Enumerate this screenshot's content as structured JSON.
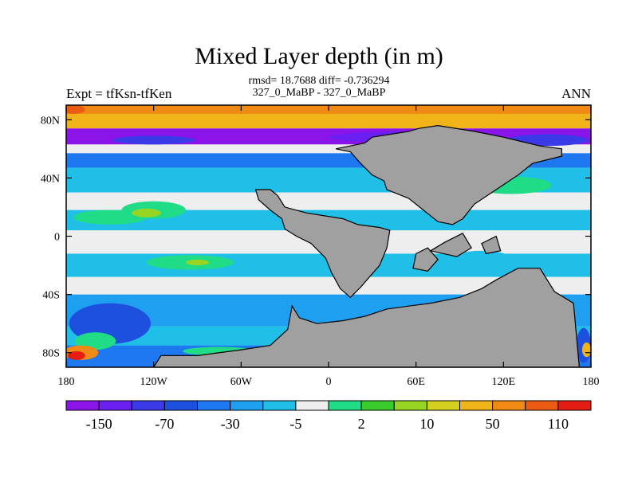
{
  "header": {
    "title": "Mixed Layer depth (in m)",
    "stats": "rmsd= 18.7688 diff= -0.736294",
    "subtitle": "327_0_MaBP - 327_0_MaBP",
    "left_label": "Expt = tfKsn-tfKen",
    "right_label": "ANN"
  },
  "chart_data": {
    "type": "heatmap",
    "title": "Mixed Layer depth (in m)",
    "map_projection": "cylindrical-equidistant",
    "x_range": [
      -180,
      180
    ],
    "y_range": [
      -90,
      90
    ],
    "x_ticks": [
      {
        "value": -180,
        "label": "180"
      },
      {
        "value": -120,
        "label": "120W"
      },
      {
        "value": -60,
        "label": "60W"
      },
      {
        "value": 0,
        "label": "0"
      },
      {
        "value": 60,
        "label": "60E"
      },
      {
        "value": 120,
        "label": "120E"
      },
      {
        "value": 180,
        "label": "180"
      }
    ],
    "y_ticks": [
      {
        "value": 80,
        "label": "80N"
      },
      {
        "value": 40,
        "label": "40N"
      },
      {
        "value": 0,
        "label": "0"
      },
      {
        "value": -40,
        "label": "40S"
      },
      {
        "value": -80,
        "label": "80S"
      }
    ],
    "land_color": "#a0a0a0",
    "colorbar": {
      "colors": [
        "#8b14e8",
        "#6a20f0",
        "#3a3ae8",
        "#1e50e0",
        "#1e78f0",
        "#1e9ff0",
        "#20bfe8",
        "#eeeeee",
        "#20dc86",
        "#38cc2c",
        "#98d422",
        "#d4d020",
        "#f0b418",
        "#f08a14",
        "#ea5a10",
        "#e41c12"
      ],
      "labels": [
        {
          "boundary": 1,
          "label": "-150"
        },
        {
          "boundary": 3,
          "label": "-70"
        },
        {
          "boundary": 5,
          "label": "-30"
        },
        {
          "boundary": 7,
          "label": "-5"
        },
        {
          "boundary": 9,
          "label": "2"
        },
        {
          "boundary": 11,
          "label": "10"
        },
        {
          "boundary": 13,
          "label": "50"
        },
        {
          "boundary": 15,
          "label": "110"
        }
      ]
    },
    "zonal_bands": [
      {
        "lat": [
          84,
          90
        ],
        "color": "#f08a14"
      },
      {
        "lat": [
          74,
          84
        ],
        "color": "#f0b418"
      },
      {
        "lat": [
          63,
          74
        ],
        "color": "#8b14e8"
      },
      {
        "lat": [
          57,
          63
        ],
        "color": "#eeeeee"
      },
      {
        "lat": [
          47,
          57
        ],
        "color": "#1e78f0"
      },
      {
        "lat": [
          30,
          47
        ],
        "color": "#20bfe8"
      },
      {
        "lat": [
          18,
          30
        ],
        "color": "#eeeeee"
      },
      {
        "lat": [
          4,
          18
        ],
        "color": "#20bfe8"
      },
      {
        "lat": [
          -12,
          4
        ],
        "color": "#eeeeee"
      },
      {
        "lat": [
          -28,
          -12
        ],
        "color": "#20bfe8"
      },
      {
        "lat": [
          -40,
          -28
        ],
        "color": "#eeeeee"
      },
      {
        "lat": [
          -62,
          -40
        ],
        "color": "#1e9ff0"
      },
      {
        "lat": [
          -75,
          -62
        ],
        "color": "#20bfe8"
      },
      {
        "lat": [
          -90,
          -75
        ],
        "color": "#1e78f0"
      }
    ],
    "patches": [
      {
        "lon": 60,
        "lat": 68,
        "rx": 60,
        "ry": 4,
        "color": "#6a20f0"
      },
      {
        "lon": 150,
        "lat": 66,
        "rx": 28,
        "ry": 4,
        "color": "#3a3ae8"
      },
      {
        "lon": -120,
        "lat": 66,
        "rx": 28,
        "ry": 3,
        "color": "#3a3ae8"
      },
      {
        "lon": -175,
        "lat": 87,
        "rx": 8,
        "ry": 3,
        "color": "#ea5a10"
      },
      {
        "lon": -150,
        "lat": 13,
        "rx": 25,
        "ry": 5,
        "color": "#20dc86"
      },
      {
        "lon": -120,
        "lat": 18,
        "rx": 22,
        "ry": 6,
        "color": "#20dc86"
      },
      {
        "lon": -125,
        "lat": 16,
        "rx": 10,
        "ry": 3,
        "color": "#98d422"
      },
      {
        "lon": -95,
        "lat": -18,
        "rx": 30,
        "ry": 5,
        "color": "#20dc86"
      },
      {
        "lon": -90,
        "lat": -18,
        "rx": 8,
        "ry": 2,
        "color": "#98d422"
      },
      {
        "lon": 125,
        "lat": 35,
        "rx": 18,
        "ry": 3,
        "color": "#98d422"
      },
      {
        "lon": 125,
        "lat": 35,
        "rx": 28,
        "ry": 6,
        "color": "#20dc86"
      },
      {
        "lon": -150,
        "lat": -60,
        "rx": 28,
        "ry": 14,
        "color": "#1e50e0"
      },
      {
        "lon": -160,
        "lat": -72,
        "rx": 14,
        "ry": 6,
        "color": "#20dc86"
      },
      {
        "lon": -170,
        "lat": -80,
        "rx": 12,
        "ry": 5,
        "color": "#f08a14"
      },
      {
        "lon": -173,
        "lat": -82,
        "rx": 6,
        "ry": 3,
        "color": "#e41c12"
      },
      {
        "lon": -75,
        "lat": -79,
        "rx": 25,
        "ry": 3,
        "color": "#20dc86"
      },
      {
        "lon": 175,
        "lat": -75,
        "rx": 5,
        "ry": 12,
        "color": "#1e50e0"
      },
      {
        "lon": 177,
        "lat": -78,
        "rx": 3,
        "ry": 5,
        "color": "#f0b418"
      },
      {
        "lon": 105,
        "lat": -15,
        "rx": 20,
        "ry": 5,
        "color": "#20bfe8"
      },
      {
        "lon": 85,
        "lat": 10,
        "rx": 10,
        "ry": 5,
        "color": "#20bfe8"
      }
    ],
    "land": [
      [
        [
          5,
          60
        ],
        [
          25,
          64
        ],
        [
          30,
          68
        ],
        [
          55,
          72
        ],
        [
          62,
          74
        ],
        [
          75,
          76
        ],
        [
          100,
          72
        ],
        [
          120,
          68
        ],
        [
          145,
          62
        ],
        [
          160,
          60
        ],
        [
          160,
          55
        ],
        [
          140,
          50
        ],
        [
          130,
          42
        ],
        [
          115,
          32
        ],
        [
          100,
          22
        ],
        [
          92,
          12
        ],
        [
          85,
          8
        ],
        [
          75,
          10
        ],
        [
          65,
          18
        ],
        [
          55,
          26
        ],
        [
          45,
          30
        ],
        [
          40,
          32
        ],
        [
          38,
          38
        ],
        [
          30,
          42
        ],
        [
          22,
          50
        ],
        [
          15,
          58
        ]
      ],
      [
        [
          -50,
          32
        ],
        [
          -40,
          32
        ],
        [
          -35,
          28
        ],
        [
          -30,
          20
        ],
        [
          -15,
          16
        ],
        [
          10,
          12
        ],
        [
          20,
          8
        ],
        [
          35,
          6
        ],
        [
          42,
          4
        ],
        [
          40,
          -8
        ],
        [
          35,
          -20
        ],
        [
          28,
          -28
        ],
        [
          22,
          -35
        ],
        [
          15,
          -42
        ],
        [
          8,
          -36
        ],
        [
          2,
          -25
        ],
        [
          -2,
          -15
        ],
        [
          -12,
          -5
        ],
        [
          -22,
          0
        ],
        [
          -30,
          5
        ],
        [
          -32,
          12
        ],
        [
          -40,
          18
        ],
        [
          -48,
          25
        ]
      ],
      [
        [
          -25,
          -48
        ],
        [
          -20,
          -56
        ],
        [
          -8,
          -60
        ],
        [
          10,
          -58
        ],
        [
          25,
          -55
        ],
        [
          40,
          -50
        ],
        [
          55,
          -48
        ],
        [
          70,
          -46
        ],
        [
          90,
          -42
        ],
        [
          105,
          -36
        ],
        [
          115,
          -30
        ],
        [
          130,
          -22
        ],
        [
          145,
          -22
        ],
        [
          155,
          -38
        ],
        [
          168,
          -46
        ],
        [
          172,
          -90
        ],
        [
          -120,
          -90
        ],
        [
          -115,
          -82
        ],
        [
          -90,
          -82
        ],
        [
          -60,
          -78
        ],
        [
          -40,
          -75
        ],
        [
          -28,
          -64
        ]
      ],
      [
        [
          60,
          -12
        ],
        [
          68,
          -8
        ],
        [
          75,
          -16
        ],
        [
          68,
          -24
        ],
        [
          58,
          -22
        ]
      ],
      [
        [
          70,
          -10
        ],
        [
          80,
          -4
        ],
        [
          92,
          2
        ],
        [
          98,
          -8
        ],
        [
          88,
          -14
        ]
      ],
      [
        [
          105,
          -5
        ],
        [
          115,
          0
        ],
        [
          118,
          -10
        ],
        [
          108,
          -12
        ]
      ]
    ]
  }
}
